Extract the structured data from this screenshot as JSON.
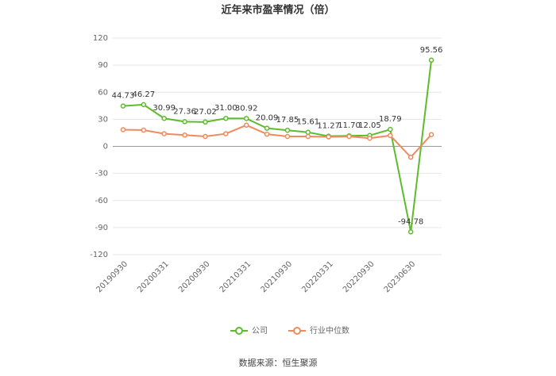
{
  "chart_data": {
    "type": "line",
    "title": "近年来市盈率情况（倍）",
    "categories": [
      "20190930",
      null,
      "20200331",
      null,
      "20200930",
      null,
      "20210331",
      null,
      "20210930",
      null,
      "20220331",
      null,
      "20220930",
      null,
      "20230630",
      null
    ],
    "series": [
      {
        "name": "公司",
        "color": "#5dbb2c",
        "values": [
          44.73,
          46.27,
          30.99,
          27.36,
          27.02,
          31.0,
          30.92,
          20.09,
          17.85,
          15.61,
          11.27,
          11.7,
          12.05,
          18.79,
          -94.78,
          95.56
        ],
        "value_labels": [
          "44.73",
          "46.27",
          "30.99",
          "27.36",
          "27.02",
          "31.00",
          "30.92",
          "20.09",
          "17.85",
          "15.61",
          "11.27",
          "11.70",
          "12.05",
          "18.79",
          "-94.78",
          "95.56"
        ]
      },
      {
        "name": "行业中位数",
        "color": "#f08a5d",
        "values": [
          18.5,
          18,
          14,
          12.5,
          11,
          14,
          23.5,
          13.5,
          11,
          11,
          10.5,
          11,
          9,
          12,
          -12,
          13
        ]
      }
    ],
    "ylim": [
      -120,
      120
    ],
    "yticks": [
      -120,
      -90,
      -60,
      -30,
      0,
      30,
      60,
      90,
      120
    ],
    "grid": true,
    "source": "数据来源：恒生聚源"
  }
}
